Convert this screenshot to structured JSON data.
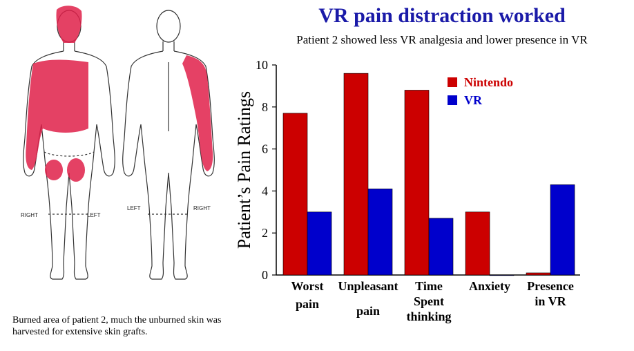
{
  "caption": "Burned area of patient 2, much the unburned skin was harvested for extensive skin grafts.",
  "figure_labels": {
    "front_right": "RIGHT",
    "front_left": "LEFT",
    "back_left": "LEFT",
    "back_right": "RIGHT"
  },
  "colors": {
    "nintendo": "#cc0000",
    "vr": "#0000cc",
    "burn": "#e0204a",
    "title": "#1a1aa8"
  },
  "chart_data": {
    "type": "bar",
    "title": "VR pain distraction worked",
    "subtitle": "Patient 2 showed less VR analgesia and lower presence in VR",
    "ylabel": "Patient’s Pain Ratings",
    "xlabel": "",
    "ylim": [
      0,
      10
    ],
    "yticks": [
      "0",
      "2",
      "4",
      "6",
      "8",
      "10"
    ],
    "categories": [
      {
        "lines": [
          "Worst",
          "pain"
        ]
      },
      {
        "lines": [
          "Unpleasant",
          "pain"
        ]
      },
      {
        "lines": [
          "Time",
          "Spent",
          "thinking"
        ]
      },
      {
        "lines": [
          "Anxiety"
        ]
      },
      {
        "lines": [
          "Presence",
          "in VR"
        ]
      }
    ],
    "series": [
      {
        "name": "Nintendo",
        "values": [
          7.7,
          9.6,
          8.8,
          3.0,
          0.1
        ]
      },
      {
        "name": "VR",
        "values": [
          3.0,
          4.1,
          2.7,
          0.0,
          4.3
        ]
      }
    ],
    "legend_position": "top-right"
  }
}
